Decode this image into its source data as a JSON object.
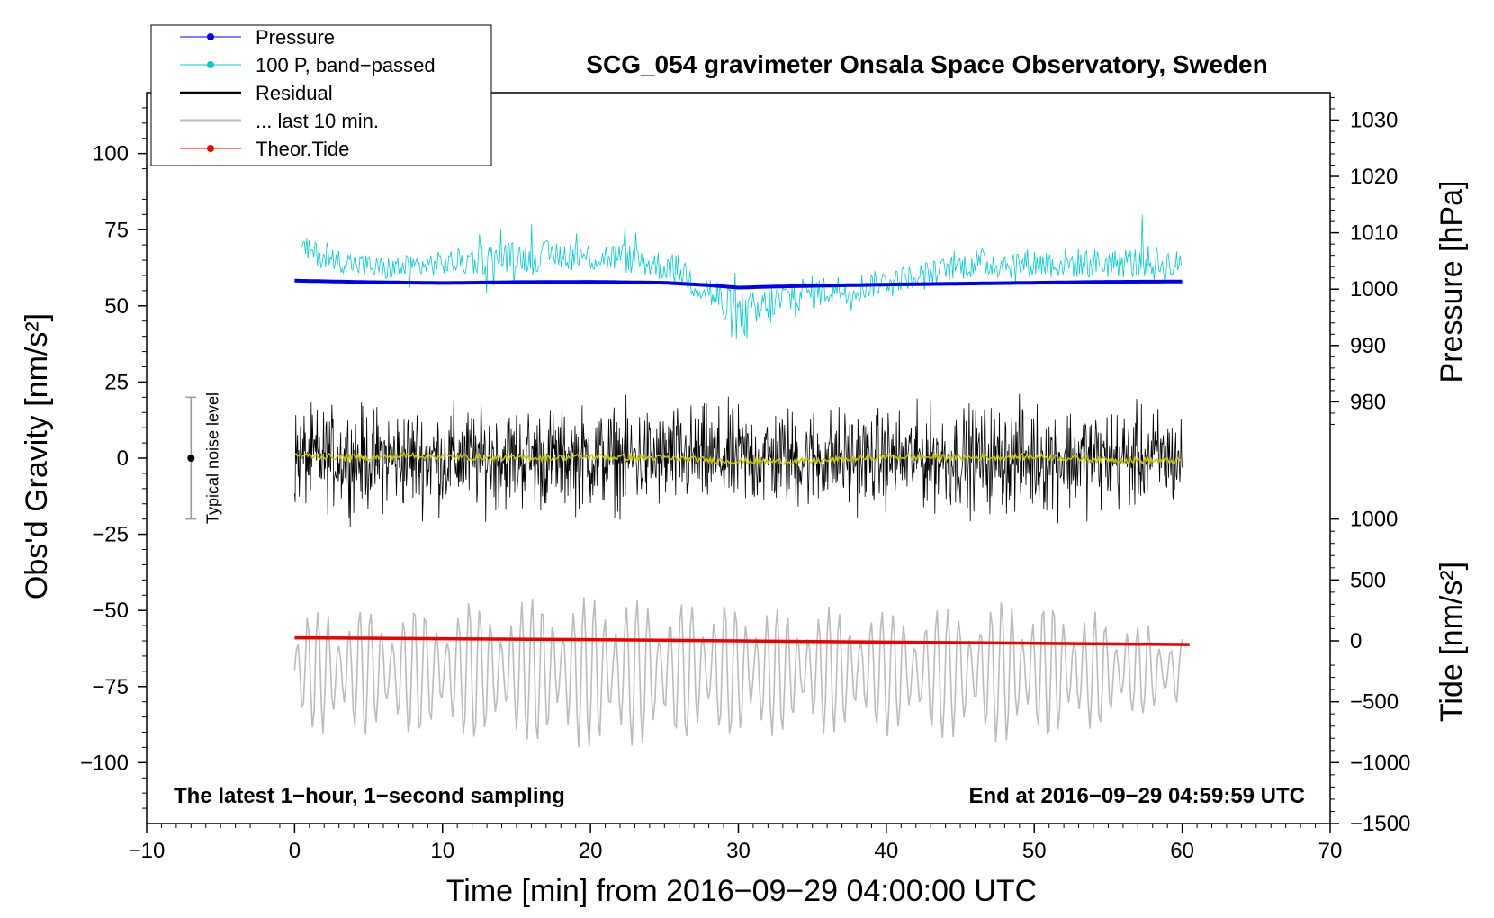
{
  "chart_data": {
    "type": "line",
    "title": "SCG_054 gravimeter Onsala Space Observatory, Sweden",
    "xlabel": "Time [min] from 2016−09−29 04:00:00 UTC",
    "ylabel": "Obs'd Gravity [nm/s²]",
    "ylabel_right_pressure": "Pressure [hPa]",
    "ylabel_right_tide": "Tide [nm/s²]",
    "xlim": [
      -10,
      70
    ],
    "ylim": [
      -120,
      120
    ],
    "x_ticks": [
      -10,
      0,
      10,
      20,
      30,
      40,
      50,
      60,
      70
    ],
    "x_tick_labels": [
      "−10",
      "0",
      "10",
      "20",
      "30",
      "40",
      "50",
      "60",
      "70"
    ],
    "y_ticks": [
      100,
      75,
      50,
      25,
      0,
      -25,
      -50,
      -75,
      -100
    ],
    "y_tick_labels": [
      "100",
      "75",
      "50",
      "25",
      "0",
      "−25",
      "−50",
      "−75",
      "−100"
    ],
    "pressure_axis": {
      "ticks": [
        1030,
        1020,
        1010,
        1000,
        990,
        980
      ],
      "tick_labels": [
        "1030",
        "1020",
        "1010",
        "1000",
        "990",
        "980"
      ],
      "gravity_at_1000": 55.5,
      "gravity_per_hpa": 1.85
    },
    "tide_axis": {
      "ticks": [
        1000,
        500,
        0,
        -500,
        -1000,
        -1500
      ],
      "tick_labels": [
        "1000",
        "500",
        "0",
        "−500",
        "−1000",
        "−1500"
      ],
      "gravity_at_0": -60,
      "gravity_per_unit": 0.04
    },
    "legend": {
      "position": "top-left",
      "entries": [
        {
          "label": "Pressure",
          "color": "#0000ee",
          "marker": true
        },
        {
          "label": "100 P, band−passed",
          "color": "#00cccc",
          "marker": true
        },
        {
          "label": "Residual",
          "color": "#000000",
          "marker": false
        },
        {
          "label": "... last 10 min.",
          "color": "#bbbbbb",
          "marker": false
        },
        {
          "label": "Theor.Tide",
          "color": "#ee0000",
          "marker": true
        }
      ]
    },
    "annotations": {
      "left": "The latest 1−hour, 1−second sampling",
      "right": "End at 2016−09−29 04:59:59 UTC",
      "noise_label": "Typical noise level"
    },
    "noise_bar": {
      "x": -7,
      "center": 0,
      "half_range": 20
    },
    "series": [
      {
        "name": "Pressure",
        "color": "#0000ee",
        "x": [
          0,
          5,
          10,
          15,
          20,
          25,
          28,
          30,
          32,
          35,
          40,
          45,
          50,
          55,
          60
        ],
        "y": [
          58.3,
          57.8,
          57.5,
          57.8,
          57.9,
          57.6,
          56.8,
          56.0,
          56.3,
          56.6,
          57.0,
          57.3,
          57.6,
          57.9,
          58.0
        ]
      },
      {
        "name": "100 P, band−passed",
        "color": "#00cccc",
        "x": [
          0,
          1,
          2,
          4,
          6,
          8,
          10,
          12,
          14,
          16,
          18,
          20,
          22,
          24,
          26,
          27,
          28,
          29,
          30,
          31,
          32,
          34,
          36,
          38,
          40,
          42,
          44,
          46,
          48,
          50,
          52,
          54,
          56,
          58,
          60
        ],
        "y": [
          70,
          68,
          66,
          64,
          62,
          63,
          64,
          65,
          66,
          66,
          67,
          66,
          66,
          64,
          62,
          58,
          55,
          50,
          46,
          47,
          50,
          54,
          55,
          56,
          58,
          60,
          62,
          64,
          64,
          64,
          64,
          64,
          64,
          64,
          63
        ],
        "amplitude": [
          4,
          4,
          4,
          4,
          4,
          4,
          4,
          5,
          5,
          5,
          5,
          5,
          5,
          5,
          5,
          6,
          6,
          8,
          9,
          8,
          7,
          6,
          5,
          5,
          4,
          4,
          4,
          5,
          5,
          5,
          5,
          5,
          5,
          6,
          5
        ]
      },
      {
        "name": "Residual",
        "color": "#000000",
        "x": [
          0,
          5,
          10,
          15,
          20,
          25,
          30,
          35,
          40,
          45,
          50,
          55,
          60
        ],
        "y": [
          0,
          0,
          0,
          0,
          0,
          0,
          0,
          0,
          0,
          0,
          0,
          0,
          0
        ],
        "amplitude": [
          13,
          14,
          14,
          14,
          14,
          14,
          14,
          14,
          13,
          14,
          15,
          14,
          13
        ]
      },
      {
        "name": "Residual smoothed",
        "color": "#c8c800",
        "x": [
          0,
          2,
          5,
          8,
          10,
          15,
          20,
          25,
          30,
          35,
          40,
          45,
          50,
          55,
          60
        ],
        "y": [
          1,
          0.5,
          0.2,
          1,
          0.5,
          0,
          0.5,
          0,
          -1,
          -1,
          0.5,
          0.2,
          0.5,
          -0.5,
          -1
        ]
      },
      {
        "name": "... last 10 min.",
        "color": "#bbbbbb",
        "x": [
          0,
          10,
          20,
          30,
          40,
          50,
          60
        ],
        "y": [
          -70,
          -70,
          -70,
          -70,
          -70,
          -70,
          -70
        ],
        "amplitude": [
          20,
          22,
          26,
          22,
          20,
          24,
          12
        ]
      },
      {
        "name": "Theor.Tide",
        "color": "#ee0000",
        "x": [
          0,
          10,
          20,
          30,
          40,
          50,
          60.5
        ],
        "y": [
          -59,
          -59.3,
          -59.6,
          -60,
          -60.4,
          -60.8,
          -61.2
        ]
      }
    ]
  }
}
